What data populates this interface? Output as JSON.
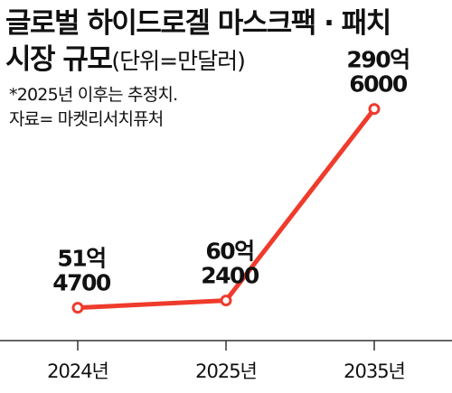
{
  "title": {
    "line1": "글로벌 하이드로겔 마스크팩 · 패치",
    "line2_main": "시장 규모",
    "line2_unit": "(단위=만달러)"
  },
  "notes": {
    "estimate": "*2025년 이후는 추정치.",
    "source": "자료= 마켓리서치퓨처"
  },
  "colors": {
    "line": "#ef3b2c",
    "marker_fill": "#ffffff",
    "axis": "#333333",
    "text": "#111111"
  },
  "chart_data": {
    "type": "line",
    "categories": [
      "2024년",
      "2025년",
      "2035년"
    ],
    "values": [
      514700,
      602400,
      2906000
    ],
    "data_labels": [
      [
        "51억",
        "4700"
      ],
      [
        "60억",
        "2400"
      ],
      [
        "290억",
        "6000"
      ]
    ],
    "unit": "만달러",
    "ylim": [
      0,
      3000000
    ],
    "grid": false,
    "legend": "none"
  }
}
